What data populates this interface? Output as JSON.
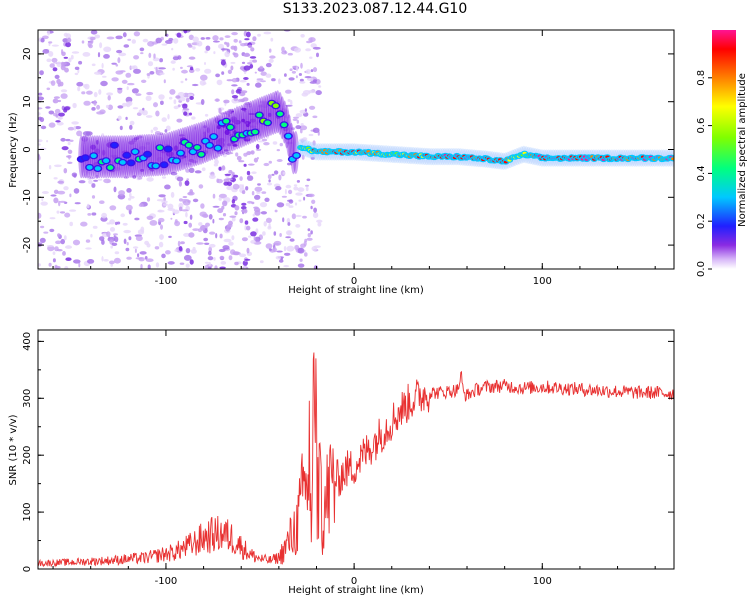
{
  "title": "S133.2023.087.12.44.G10",
  "chart_data": [
    {
      "type": "heatmap",
      "xlabel": "Height of straight line (km)",
      "ylabel": "Frequency (Hz)",
      "xlim": [
        -168,
        170
      ],
      "ylim": [
        -25,
        25
      ],
      "xticks": [
        -100,
        0,
        100
      ],
      "yticks": [
        -20,
        -10,
        0,
        10,
        20
      ],
      "colorbar": {
        "label": "Normalized spectral amplitude",
        "ticks": [
          0.0,
          0.2,
          0.4,
          0.6,
          0.8
        ],
        "range": [
          0,
          1
        ],
        "colors": [
          "#ffffff",
          "#b98cf0",
          "#6a00e0",
          "#2020ff",
          "#00c8ff",
          "#00ff80",
          "#80ff00",
          "#ffff00",
          "#ff8000",
          "#ff0000",
          "#ff1493"
        ]
      },
      "ridge": {
        "x": [
          -145,
          -120,
          -100,
          -80,
          -65,
          -50,
          -40,
          -36,
          -32,
          -28,
          -20,
          -10,
          0,
          20,
          40,
          55,
          70,
          80,
          90,
          100,
          120,
          140,
          170
        ],
        "y": [
          -1.5,
          -1.5,
          -1.0,
          1.5,
          4.0,
          6.5,
          8.0,
          5.0,
          -1.0,
          0.5,
          -0.5,
          -0.5,
          -0.5,
          -1.0,
          -1.5,
          -1.5,
          -2.0,
          -2.5,
          -1.0,
          -1.8,
          -1.8,
          -1.8,
          -1.8
        ],
        "amplitude": [
          0.35,
          0.4,
          0.4,
          0.45,
          0.45,
          0.55,
          0.6,
          0.3,
          0.35,
          0.6,
          0.8,
          0.85,
          0.85,
          0.7,
          0.8,
          0.95,
          0.9,
          0.85,
          0.6,
          0.95,
          0.95,
          0.9,
          0.9
        ]
      }
    },
    {
      "type": "line",
      "xlabel": "Height of straight line (km)",
      "ylabel": "SNR (10 * v/v)",
      "xlim": [
        -168,
        170
      ],
      "ylim": [
        0,
        420
      ],
      "xticks": [
        -100,
        0,
        100
      ],
      "yticks": [
        0,
        100,
        200,
        300,
        400
      ],
      "series": [
        {
          "color": "#e83030",
          "x": [
            -168,
            -150,
            -130,
            -110,
            -95,
            -85,
            -80,
            -75,
            -70,
            -65,
            -60,
            -55,
            -50,
            -45,
            -40,
            -36,
            -33,
            -30,
            -27,
            -24,
            -22,
            -20,
            -18,
            -16,
            -14,
            -12,
            -8,
            -4,
            0,
            5,
            10,
            15,
            20,
            25,
            30,
            35,
            40,
            45,
            50,
            55,
            57,
            58,
            60,
            65,
            70,
            80,
            90,
            100,
            110,
            120,
            130,
            140,
            150,
            160,
            170
          ],
          "y": [
            10,
            12,
            15,
            20,
            30,
            45,
            55,
            60,
            62,
            55,
            40,
            25,
            18,
            15,
            20,
            40,
            60,
            80,
            130,
            180,
            290,
            200,
            120,
            100,
            130,
            150,
            160,
            175,
            180,
            200,
            220,
            240,
            260,
            280,
            295,
            305,
            310,
            310,
            312,
            315,
            340,
            310,
            305,
            315,
            320,
            322,
            318,
            320,
            318,
            316,
            314,
            312,
            310,
            310,
            308
          ]
        }
      ]
    }
  ]
}
